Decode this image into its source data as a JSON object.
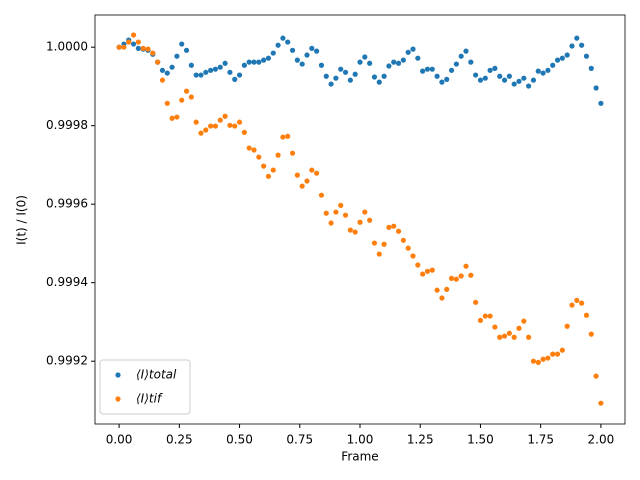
{
  "chart_data": {
    "type": "scatter",
    "x_label": "Frame",
    "y_label": "I(t) / I(0)",
    "xlim": [
      -0.1,
      2.1
    ],
    "ylim": [
      0.99904,
      1.000082
    ],
    "xticks": [
      {
        "value": 0,
        "label": "0.00"
      },
      {
        "value": 0.25,
        "label": "0.25"
      },
      {
        "value": 0.5,
        "label": "0.50"
      },
      {
        "value": 0.75,
        "label": "0.75"
      },
      {
        "value": 1,
        "label": "1.00"
      },
      {
        "value": 1.25,
        "label": "1.25"
      },
      {
        "value": 1.5,
        "label": "1.50"
      },
      {
        "value": 1.75,
        "label": "1.75"
      },
      {
        "value": 2,
        "label": "2.00"
      }
    ],
    "yticks": [
      0.9992,
      0.9994,
      0.9996,
      0.9998,
      {
        "value": 1,
        "label": "1.0000"
      }
    ],
    "grid": false,
    "legend": "lower left",
    "x": [
      0,
      0.02,
      0.04,
      0.06,
      0.08,
      0.1,
      0.12,
      0.14,
      0.16,
      0.18,
      0.2,
      0.22,
      0.24,
      0.26,
      0.28,
      0.3,
      0.32,
      0.34,
      0.36,
      0.38,
      0.4,
      0.42,
      0.44,
      0.46,
      0.48,
      0.5,
      0.52,
      0.54,
      0.56,
      0.58,
      0.6,
      0.62,
      0.64,
      0.66,
      0.68,
      0.7,
      0.72,
      0.74,
      0.76,
      0.78,
      0.8,
      0.82,
      0.84,
      0.86,
      0.88,
      0.9,
      0.92,
      0.94,
      0.96,
      0.98,
      1,
      1.02,
      1.04,
      1.06,
      1.08,
      1.1,
      1.12,
      1.14,
      1.16,
      1.18,
      1.2,
      1.22,
      1.24,
      1.26,
      1.28,
      1.3,
      1.32,
      1.34,
      1.36,
      1.38,
      1.4,
      1.42,
      1.44,
      1.46,
      1.48,
      1.5,
      1.52,
      1.54,
      1.56,
      1.58,
      1.6,
      1.62,
      1.64,
      1.66,
      1.68,
      1.7,
      1.72,
      1.74,
      1.76,
      1.78,
      1.8,
      1.82,
      1.84,
      1.86,
      1.88,
      1.9,
      1.92,
      1.94,
      1.96,
      1.98,
      2
    ],
    "series": [
      {
        "name": "⟨I⟩total",
        "color": "#1f77b4",
        "values": [
          1.0,
          1.000008,
          1.000018,
          1.000008,
          0.999997,
          0.999995,
          0.999992,
          0.999982,
          0.999962,
          0.999941,
          0.999934,
          0.999949,
          0.999977,
          1.000008,
          0.999992,
          0.999954,
          0.999929,
          0.999929,
          0.999936,
          0.999941,
          0.999944,
          0.999949,
          0.999959,
          0.999936,
          0.999918,
          0.999929,
          0.999954,
          0.999962,
          0.999962,
          0.999962,
          0.999967,
          0.999972,
          0.999985,
          1.000005,
          1.000023,
          1.000013,
          0.999992,
          0.999967,
          0.999957,
          0.99998,
          0.999997,
          0.99999,
          0.999954,
          0.999926,
          0.999906,
          0.999921,
          0.999944,
          0.999936,
          0.999916,
          0.999931,
          0.999962,
          0.999975,
          0.999959,
          0.999924,
          0.999911,
          0.999926,
          0.999952,
          0.999962,
          0.999959,
          0.999967,
          0.999987,
          0.999995,
          0.999972,
          0.999939,
          0.999944,
          0.999944,
          0.999926,
          0.999911,
          0.999918,
          0.999941,
          0.999957,
          0.999977,
          0.99999,
          0.999962,
          0.999929,
          0.999916,
          0.999921,
          0.999941,
          0.999946,
          0.999926,
          0.999916,
          0.999926,
          0.999906,
          0.999913,
          0.999921,
          0.999901,
          0.999916,
          0.999939,
          0.999934,
          0.999941,
          0.999954,
          0.999967,
          0.999972,
          0.99998,
          1.000003,
          1.000023,
          1.000005,
          0.999977,
          0.999946,
          0.999896,
          0.999857
        ]
      },
      {
        "name": "⟨I⟩tif",
        "color": "#ff7f0e",
        "values": [
          1.0,
          1.0,
          1.000013,
          1.000031,
          1.000013,
          0.999997,
          0.999995,
          0.999985,
          0.999962,
          0.999916,
          0.999857,
          0.999819,
          0.999822,
          0.999865,
          0.999888,
          0.999873,
          0.999809,
          0.999781,
          0.999789,
          0.999799,
          0.999799,
          0.999814,
          0.999824,
          0.999801,
          0.999799,
          0.999809,
          0.999783,
          0.999743,
          0.999738,
          0.99972,
          0.999697,
          0.999671,
          0.999687,
          0.999725,
          0.999771,
          0.999773,
          0.99973,
          0.999674,
          0.999646,
          0.999659,
          0.999687,
          0.999679,
          0.999623,
          0.999577,
          0.999552,
          0.99958,
          0.999597,
          0.999572,
          0.999534,
          0.999529,
          0.999554,
          0.99958,
          0.999559,
          0.999501,
          0.999473,
          0.999498,
          0.999541,
          0.999544,
          0.999531,
          0.999508,
          0.999488,
          0.999468,
          0.999445,
          0.999422,
          0.999429,
          0.999432,
          0.999381,
          0.999361,
          0.999383,
          0.999411,
          0.999409,
          0.999417,
          0.999442,
          0.999419,
          0.99935,
          0.999304,
          0.999315,
          0.999315,
          0.999287,
          0.999261,
          0.999264,
          0.999271,
          0.999261,
          0.999284,
          0.999302,
          0.999261,
          0.9992,
          0.999197,
          0.999205,
          0.999208,
          0.999218,
          0.999218,
          0.999228,
          0.999289,
          0.999343,
          0.999355,
          0.999348,
          0.999317,
          0.999269,
          0.999162,
          0.999093
        ]
      }
    ]
  }
}
